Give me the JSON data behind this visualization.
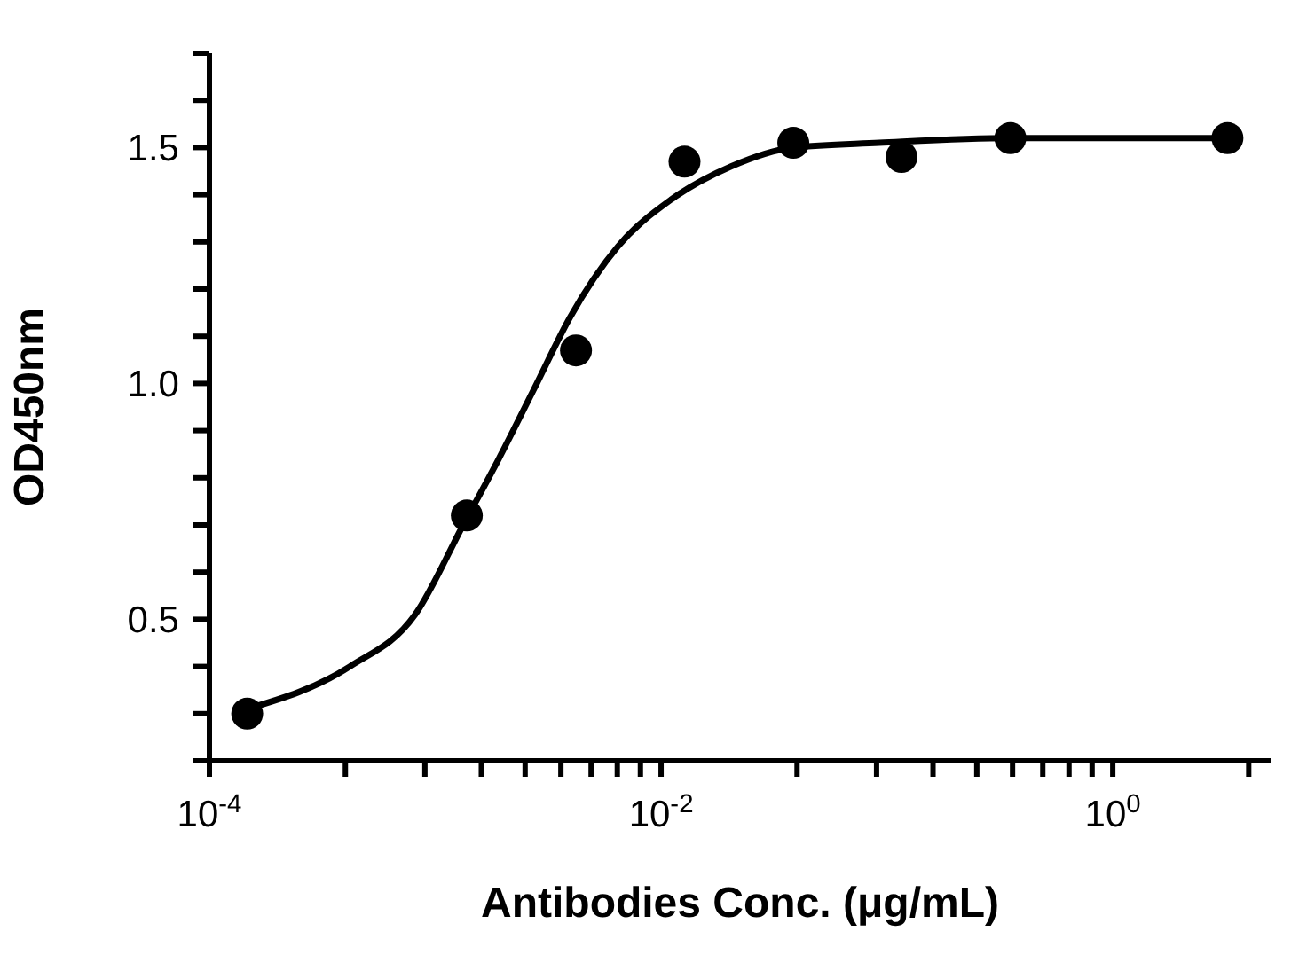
{
  "chart_data": {
    "type": "scatter",
    "xlabel": "Antibodies Conc. (μg/mL)",
    "ylabel": "OD450nm",
    "log": "x",
    "xlim": [
      0.0001,
      5
    ],
    "ylim": [
      0.2,
      1.7
    ],
    "xticks": [
      {
        "value": 0.0001,
        "label": "10$^{-4}$"
      },
      {
        "value": 0.0004,
        "label": null
      },
      {
        "value": 0.0009,
        "label": null
      },
      {
        "value": 0.0016,
        "label": null
      },
      {
        "value": 0.0025,
        "label": null
      },
      {
        "value": 0.0036,
        "label": null
      },
      {
        "value": 0.0049,
        "label": null
      },
      {
        "value": 0.0064,
        "label": null
      },
      {
        "value": 0.0081,
        "label": null
      },
      {
        "value": 0.01,
        "label": "10$^{-2}$"
      },
      {
        "value": 0.04,
        "label": null
      },
      {
        "value": 0.09,
        "label": null
      },
      {
        "value": 0.16,
        "label": null
      },
      {
        "value": 0.25,
        "label": null
      },
      {
        "value": 0.36,
        "label": null
      },
      {
        "value": 0.49,
        "label": null
      },
      {
        "value": 0.64,
        "label": null
      },
      {
        "value": 0.81,
        "label": null
      },
      {
        "value": 1,
        "label": "10$^{0}$"
      },
      {
        "value": 4,
        "label": null
      }
    ],
    "yticks": [
      {
        "value": 0.2,
        "label": null
      },
      {
        "value": 0.3,
        "label": null
      },
      {
        "value": 0.4,
        "label": null
      },
      {
        "value": 0.5,
        "label": "0.5"
      },
      {
        "value": 0.6,
        "label": null
      },
      {
        "value": 0.7,
        "label": null
      },
      {
        "value": 0.8,
        "label": null
      },
      {
        "value": 0.9,
        "label": null
      },
      {
        "value": 1.0,
        "label": "1.0"
      },
      {
        "value": 1.1,
        "label": null
      },
      {
        "value": 1.2,
        "label": null
      },
      {
        "value": 1.3,
        "label": null
      },
      {
        "value": 1.4,
        "label": null
      },
      {
        "value": 1.5,
        "label": "1.5"
      },
      {
        "value": 1.6,
        "label": null
      },
      {
        "value": 1.7,
        "label": null
      }
    ],
    "grid": false,
    "legend": false,
    "series": [
      {
        "color": "#000000",
        "marker": "circle",
        "x": [
          0.000147,
          0.00138,
          0.0042,
          0.0127,
          0.0385,
          0.116,
          0.352,
          3.22
        ],
        "values": [
          0.3,
          0.72,
          1.07,
          1.47,
          1.51,
          1.48,
          1.52,
          1.52
        ]
      },
      {
        "type": "line",
        "color": "#000000",
        "marker": "none",
        "line_style": "solid",
        "x": [
          0.000147,
          0.000419,
          0.000815,
          0.00133,
          0.00191,
          0.00275,
          0.00395,
          0.00643,
          0.0111,
          0.0204,
          0.0385,
          0.0925,
          0.352,
          3.22
        ],
        "values": [
          0.31,
          0.4,
          0.51,
          0.7,
          0.84,
          0.99,
          1.14,
          1.29,
          1.39,
          1.46,
          1.5,
          1.51,
          1.52,
          1.52
        ]
      }
    ]
  }
}
